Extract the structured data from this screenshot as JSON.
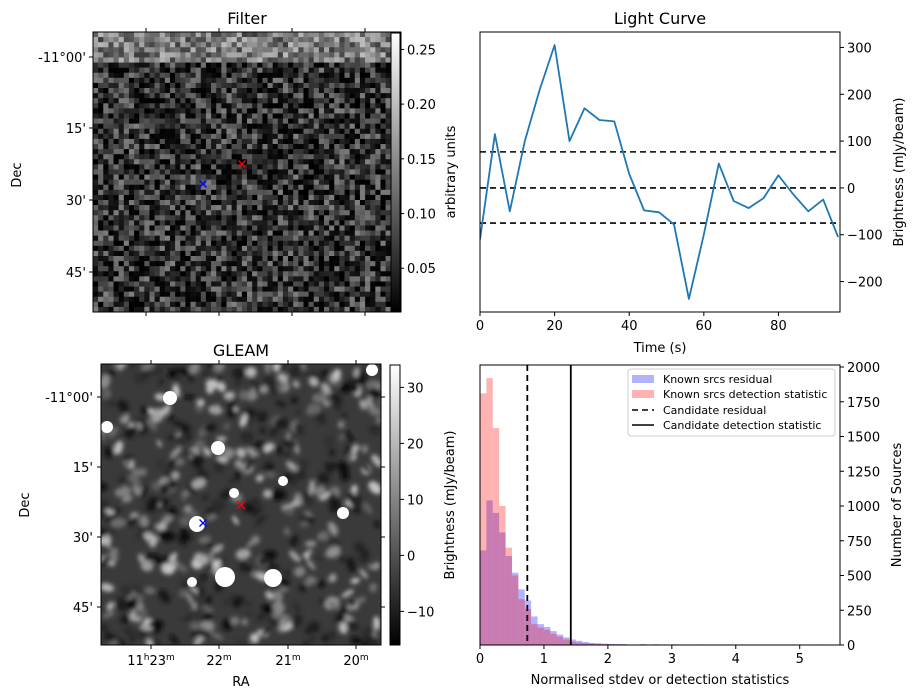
{
  "chart_data": [
    {
      "id": "filter",
      "type": "heatmap",
      "title": "Filter",
      "xlabel": "",
      "ylabel": "Dec",
      "y_ticks": [
        "-11°00'",
        "15'",
        "30'",
        "45'"
      ],
      "colorbar": {
        "label": "arbitrary units",
        "ticks": [
          "0.05",
          "0.10",
          "0.15",
          "0.20",
          "0.25"
        ],
        "range": [
          0.01,
          0.265
        ],
        "colormap": "gray"
      },
      "markers": [
        {
          "name": "candidate",
          "symbol": "x",
          "color": "#ff0000",
          "ra_min": 21.65,
          "dec_arcmin": 22.5
        },
        {
          "name": "known-source",
          "symbol": "x",
          "color": "#0000ff",
          "ra_min": 22.2,
          "dec_arcmin": 27.0
        }
      ]
    },
    {
      "id": "light-curve",
      "type": "line",
      "title": "Light Curve",
      "xlabel": "Time (s)",
      "ylabel": "Brightness (mJy/beam)",
      "x_ticks": [
        "0",
        "20",
        "40",
        "60",
        "80"
      ],
      "y_ticks": [
        "300",
        "200",
        "100",
        "0",
        "−100",
        "−200"
      ],
      "xlim": [
        0,
        96.5
      ],
      "ylim": [
        -265,
        333
      ],
      "series": [
        {
          "name": "light curve",
          "color": "#1f77b4",
          "x": [
            0,
            4,
            8,
            12,
            16,
            20,
            24,
            28,
            32,
            36,
            40,
            44,
            48,
            52,
            56,
            60,
            64,
            68,
            72,
            76,
            80,
            84,
            88,
            92,
            96
          ],
          "y": [
            -110,
            115,
            -50,
            100,
            210,
            305,
            100,
            170,
            145,
            142,
            30,
            -48,
            -52,
            -78,
            -237,
            -100,
            52,
            -28,
            -43,
            -22,
            27,
            -14,
            -50,
            -25,
            -105
          ]
        }
      ],
      "hlines": [
        {
          "name": "upper-threshold",
          "y": 77,
          "style": "dashed"
        },
        {
          "name": "mean",
          "y": 0,
          "style": "dashed"
        },
        {
          "name": "lower-threshold",
          "y": -75,
          "style": "dashed"
        }
      ]
    },
    {
      "id": "gleam",
      "type": "heatmap",
      "title": "GLEAM",
      "xlabel": "RA",
      "ylabel": "Dec",
      "x_ticks": [
        {
          "main": "11",
          "sup1": "h",
          "mid": "23",
          "sup2": "m"
        },
        {
          "main": "",
          "sup1": "",
          "mid": "22",
          "sup2": "m"
        },
        {
          "main": "",
          "sup1": "",
          "mid": "21",
          "sup2": "m"
        },
        {
          "main": "",
          "sup1": "",
          "mid": "20",
          "sup2": "m"
        }
      ],
      "y_ticks": [
        "-11°00'",
        "15'",
        "30'",
        "45'"
      ],
      "colorbar": {
        "label": "Brightness (mJy/beam)",
        "ticks": [
          "30",
          "20",
          "10",
          "0",
          "−10"
        ],
        "range": [
          -16,
          34
        ],
        "colormap": "gray"
      },
      "markers": [
        {
          "name": "candidate",
          "symbol": "x",
          "color": "#ff0000"
        },
        {
          "name": "known-source",
          "symbol": "x",
          "color": "#0000ff"
        }
      ]
    },
    {
      "id": "histogram",
      "type": "bar",
      "title": "",
      "xlabel": "Normalised stdev or detection statistics",
      "ylabel": "Number of Sources",
      "x_ticks": [
        "0",
        "1",
        "2",
        "3",
        "4",
        "5"
      ],
      "y_ticks": [
        "0",
        "250",
        "500",
        "750",
        "1000",
        "1250",
        "1500",
        "1750",
        "2000"
      ],
      "xlim": [
        0,
        5.63
      ],
      "ylim": [
        0,
        2000
      ],
      "bin_width": 0.1,
      "series": [
        {
          "name": "Known srcs residual",
          "color": "#0000ff",
          "alpha": 0.3,
          "bin_starts": [
            0,
            0.1,
            0.2,
            0.3,
            0.4,
            0.5,
            0.6,
            0.7,
            0.8,
            0.9,
            1.0,
            1.1,
            1.2,
            1.3,
            1.4,
            1.5,
            1.6,
            1.7,
            1.8,
            1.9,
            2.0,
            2.1,
            2.2,
            2.5,
            2.7,
            3.0,
            3.3,
            3.9
          ],
          "values": [
            680,
            1040,
            950,
            810,
            640,
            520,
            400,
            320,
            205,
            150,
            130,
            100,
            75,
            55,
            40,
            30,
            22,
            15,
            12,
            10,
            8,
            7,
            6,
            6,
            5,
            5,
            4,
            4
          ]
        },
        {
          "name": "Known srcs detection statistic",
          "color": "#ff0000",
          "alpha": 0.3,
          "bin_starts": [
            0,
            0.1,
            0.2,
            0.3,
            0.4,
            0.5,
            0.6,
            0.7,
            0.8,
            0.9,
            1.0,
            1.1,
            1.2,
            1.3,
            1.4,
            1.5,
            1.6,
            1.7,
            1.8,
            1.9,
            2.0,
            2.1,
            2.2,
            2.5,
            2.7,
            3.0,
            3.4,
            3.7,
            4.1,
            5.3
          ],
          "values": [
            1810,
            1920,
            1560,
            1000,
            700,
            500,
            330,
            260,
            150,
            125,
            110,
            80,
            60,
            40,
            25,
            18,
            12,
            10,
            8,
            6,
            6,
            5,
            4,
            4,
            4,
            4,
            4,
            4,
            4,
            4
          ]
        }
      ],
      "vlines": [
        {
          "name": "Candidate residual",
          "x": 0.74,
          "style": "dashed"
        },
        {
          "name": "Candidate detection statistic",
          "x": 1.42,
          "style": "solid"
        }
      ],
      "legend": {
        "position": "top-right",
        "entries": [
          {
            "label": "Known srcs residual",
            "kind": "patch",
            "color": "#0000ff"
          },
          {
            "label": "Known srcs detection statistic",
            "kind": "patch",
            "color": "#ff0000"
          },
          {
            "label": "Candidate residual",
            "kind": "dashed-line",
            "color": "#000000"
          },
          {
            "label": "Candidate detection statistic",
            "kind": "solid-line",
            "color": "#000000"
          }
        ]
      }
    }
  ]
}
